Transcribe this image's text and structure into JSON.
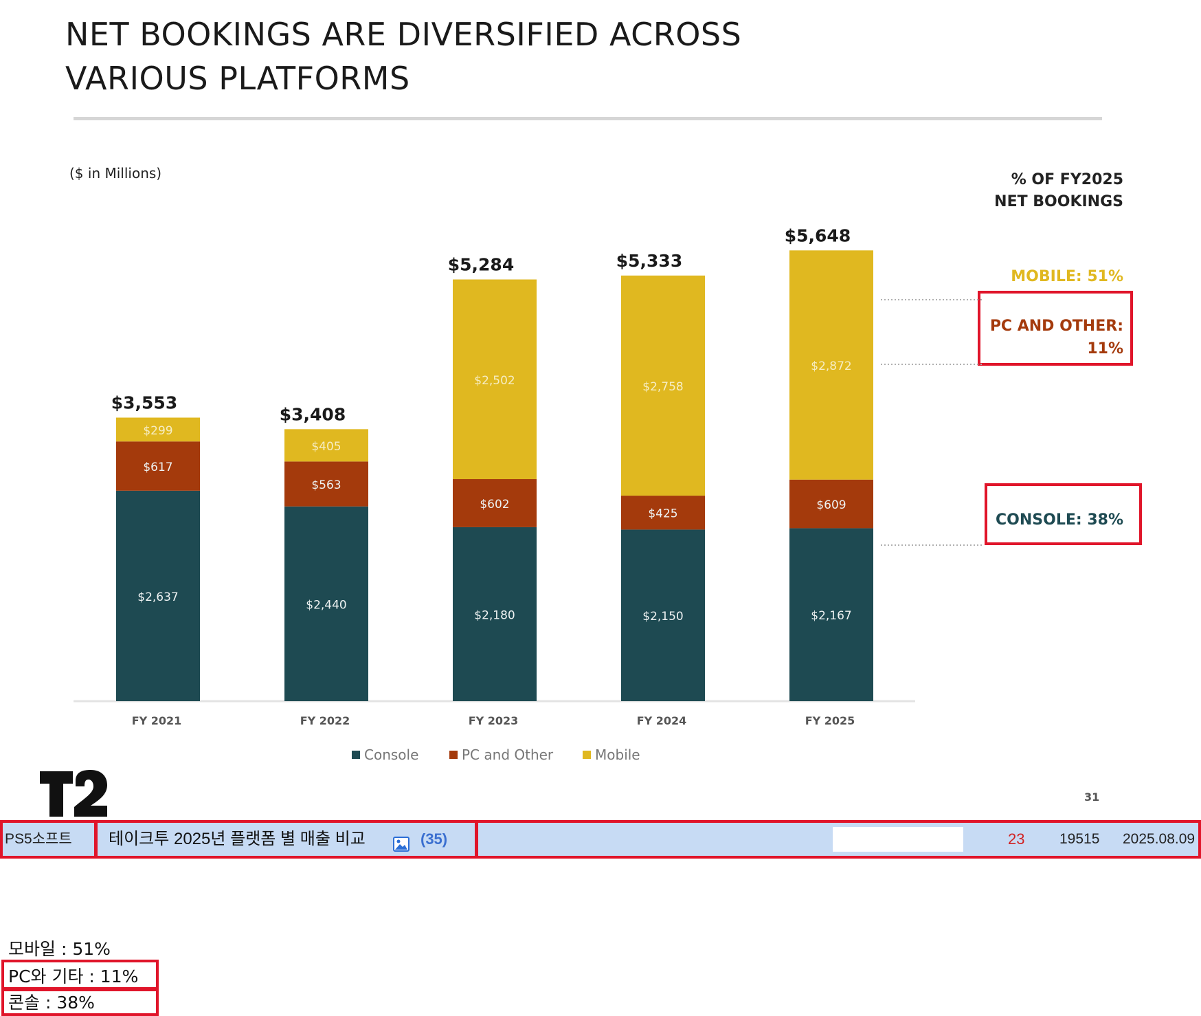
{
  "slide": {
    "title_line1": "NET BOOKINGS ARE DIVERSIFIED ACROSS",
    "title_line2": "VARIOUS PLATFORMS",
    "units_note": "($ in Millions)",
    "pct_header_line1": "% OF FY2025",
    "pct_header_line2": "NET BOOKINGS",
    "pct_mobile": "MOBILE: 51%",
    "pct_pc_line1": "PC AND OTHER:",
    "pct_pc_line2": "11%",
    "pct_console": "CONSOLE: 38%",
    "logo_text": "T2",
    "page_number": "31"
  },
  "chart_data": {
    "type": "bar",
    "stacked": true,
    "categories": [
      "FY 2021",
      "FY 2022",
      "FY 2023",
      "FY 2024",
      "FY 2025"
    ],
    "series": [
      {
        "name": "Console",
        "values": [
          2637,
          2440,
          2180,
          2150,
          2167
        ],
        "labels": [
          "$2,637",
          "$2,440",
          "$2,180",
          "$2,150",
          "$2,167"
        ],
        "color": "#1e4a52"
      },
      {
        "name": "PC and Other",
        "values": [
          617,
          563,
          602,
          425,
          609
        ],
        "labels": [
          "$617",
          "$563",
          "$602",
          "$425",
          "$609"
        ],
        "color": "#a43a0c"
      },
      {
        "name": "Mobile",
        "values": [
          299,
          405,
          2502,
          2758,
          2872
        ],
        "labels": [
          "$299",
          "$405",
          "$2,502",
          "$2,758",
          "$2,872"
        ],
        "color": "#e0b820"
      }
    ],
    "totals": [
      "$3,553",
      "$3,408",
      "$5,284",
      "$5,333",
      "$5,648"
    ],
    "ylim": [
      0,
      6000
    ],
    "legend_position": "bottom",
    "grid": false
  },
  "board": {
    "category": "PS5소프트",
    "title": "테이크투 2025년 플랫폼 별 매출 비교",
    "image_icon": "image-icon",
    "comment_count": "(35)",
    "recommend_count": "23",
    "view_count": "19515",
    "date": "2025.08.09"
  },
  "body_text": {
    "line1": "모바일 : 51%",
    "line2": "PC와 기타 : 11%",
    "line3": "콘솔 : 38%"
  },
  "colors": {
    "highlight_box": "#e0152a",
    "row_bg": "#c7dbf4"
  }
}
